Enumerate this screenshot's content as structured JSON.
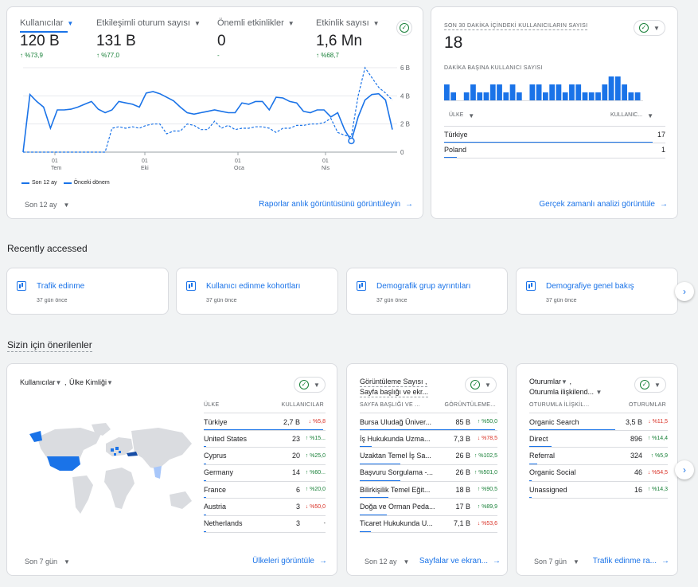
{
  "overview": {
    "tabs": [
      {
        "label": "Kullanıcılar",
        "value": "120 B",
        "delta": "↑ %73,9"
      },
      {
        "label": "Etkileşimli oturum sayısı",
        "value": "131 B",
        "delta": "↑ %77,0"
      },
      {
        "label": "Önemli etkinlikler",
        "value": "0",
        "delta": "-"
      },
      {
        "label": "Etkinlik sayısı",
        "value": "1,6 Mn",
        "delta": "↑ %68,7"
      }
    ],
    "y_ticks": [
      "6 B",
      "4 B",
      "2 B",
      "0"
    ],
    "x_ticks": [
      {
        "day": "01",
        "month": "Tem"
      },
      {
        "day": "01",
        "month": "Eki"
      },
      {
        "day": "01",
        "month": "Oca"
      },
      {
        "day": "01",
        "month": "Nis"
      }
    ],
    "legend_current": "Son 12 ay",
    "legend_previous": "Önceki dönem",
    "range_label": "Son 12 ay",
    "link": "Raporlar anlık görüntüsünü görüntüleyin"
  },
  "chart_data": {
    "type": "line",
    "ylim": [
      0,
      6000
    ],
    "x_tick_labels": [
      "01 Tem",
      "01 Eki",
      "01 Oca",
      "01 Nis"
    ],
    "series": [
      {
        "name": "Son 12 ay",
        "values": [
          0,
          4100,
          3600,
          3200,
          1700,
          3000,
          3000,
          3050,
          3200,
          3400,
          3600,
          3050,
          2800,
          3000,
          3600,
          3500,
          3400,
          3200,
          4200,
          4300,
          4150,
          3900,
          3650,
          3200,
          2800,
          2700,
          2800,
          2900,
          3000,
          2900,
          2800,
          2800,
          3500,
          3400,
          3600,
          3600,
          3000,
          3900,
          3850,
          3600,
          3500,
          2900,
          2800,
          3000,
          3000,
          2500,
          2800,
          1600,
          800,
          2500,
          3700,
          4100,
          4150,
          3700,
          1600
        ]
      },
      {
        "name": "Önceki dönem",
        "values": [
          0,
          0,
          0,
          0,
          0,
          0,
          0,
          0,
          0,
          0,
          0,
          0,
          0,
          1700,
          1800,
          1700,
          1800,
          1700,
          1900,
          2000,
          2000,
          1300,
          1500,
          1500,
          2000,
          1900,
          1600,
          1600,
          2200,
          1700,
          1900,
          1600,
          1700,
          1700,
          1800,
          1800,
          1700,
          1400,
          1700,
          1700,
          1900,
          1900,
          2000,
          2000,
          2100,
          2400,
          1400,
          1200,
          1100,
          4000,
          6000,
          5300,
          4600,
          4200,
          3700
        ]
      }
    ]
  },
  "realtime": {
    "title": "SON 30 DAKİKA İÇİNDEKİ KULLANICILARIN SAYISI",
    "value": "18",
    "subtitle": "DAKİKA BAŞINA KULLANICI SAYISI",
    "per_minute": [
      2,
      1,
      0,
      1,
      2,
      1,
      1,
      2,
      2,
      1,
      2,
      1,
      0,
      2,
      2,
      1,
      2,
      2,
      1,
      2,
      2,
      1,
      1,
      1,
      2,
      3,
      3,
      2,
      1,
      1
    ],
    "col_country": "ÜLKE",
    "col_users": "KULLANIC...",
    "rows": [
      {
        "country": "Türkiye",
        "users": "17",
        "share": 1.0
      },
      {
        "country": "Poland",
        "users": "1",
        "share": 0.06
      }
    ],
    "link": "Gerçek zamanlı analizi görüntüle"
  },
  "recent": {
    "heading": "Recently accessed",
    "items": [
      {
        "title": "Trafik edinme",
        "sub": "37 gün önce"
      },
      {
        "title": "Kullanıcı edinme kohortları",
        "sub": "37 gün önce"
      },
      {
        "title": "Demografik grup ayrıntıları",
        "sub": "37 gün önce"
      },
      {
        "title": "Demografiye genel bakış",
        "sub": "37 gün önce"
      }
    ]
  },
  "suggested": {
    "heading": "Sizin için önerilenler",
    "map_card": {
      "metric": "Kullanıcılar",
      "dimension": "Ülke Kimliği",
      "col_country": "ÜLKE",
      "col_users": "KULLANICILAR",
      "rows": [
        {
          "name": "Türkiye",
          "value": "2,7 B",
          "delta": "↓ %5,8",
          "dir": "down",
          "share": 1.0
        },
        {
          "name": "United States",
          "value": "23",
          "delta": "↑ %15...",
          "dir": "up",
          "share": 0.01
        },
        {
          "name": "Cyprus",
          "value": "20",
          "delta": "↑ %25,0",
          "dir": "up",
          "share": 0.01
        },
        {
          "name": "Germany",
          "value": "14",
          "delta": "↑ %60...",
          "dir": "up",
          "share": 0.01
        },
        {
          "name": "France",
          "value": "6",
          "delta": "↑ %20,0",
          "dir": "up",
          "share": 0.01
        },
        {
          "name": "Austria",
          "value": "3",
          "delta": "↓ %50,0",
          "dir": "down",
          "share": 0.01
        },
        {
          "name": "Netherlands",
          "value": "3",
          "delta": "-",
          "dir": "none",
          "share": 0.01
        }
      ],
      "range_label": "Son 7 gün",
      "link": "Ülkeleri görüntüle"
    },
    "pages_card": {
      "metric": "Görüntüleme Sayısı ,",
      "dimension": "Sayfa başlığı ve ekr...",
      "col_name": "SAYFA BAŞLIĞI VE ...",
      "col_value": "GÖRÜNTÜLEME...",
      "rows": [
        {
          "name": "Bursa Uludağ Üniver...",
          "value": "85 B",
          "delta": "↑ %50,0",
          "dir": "up",
          "share": 1.0
        },
        {
          "name": "İş Hukukunda Uzma...",
          "value": "7,3 B",
          "delta": "↓ %78,5",
          "dir": "down",
          "share": 0.09
        },
        {
          "name": "Uzaktan Temel İş Sa...",
          "value": "26 B",
          "delta": "↑ %102,5",
          "dir": "up",
          "share": 0.3
        },
        {
          "name": "Başvuru Sorgulama -...",
          "value": "26 B",
          "delta": "↑ %501,0",
          "dir": "up",
          "share": 0.3
        },
        {
          "name": "Bilirkişilik Temel Eğit...",
          "value": "18 B",
          "delta": "↑ %90,5",
          "dir": "up",
          "share": 0.21
        },
        {
          "name": "Doğa ve Orman Peda...",
          "value": "17 B",
          "delta": "↑ %89,9",
          "dir": "up",
          "share": 0.2
        },
        {
          "name": "Ticaret Hukukunda U...",
          "value": "7,1 B",
          "delta": "↓ %53,6",
          "dir": "down",
          "share": 0.08
        }
      ],
      "range_label": "Son 12 ay",
      "link": "Sayfalar ve ekran..."
    },
    "sessions_card": {
      "metric": "Oturumlar",
      "dimension": "Oturumla ilişkilend...",
      "col_name": "OTURUMLA İLİŞKİL...",
      "col_value": "OTURUMLAR",
      "rows": [
        {
          "name": "Organic Search",
          "value": "3,5 B",
          "delta": "↓ %11,5",
          "dir": "down",
          "share": 1.0
        },
        {
          "name": "Direct",
          "value": "896",
          "delta": "↑ %14,4",
          "dir": "up",
          "share": 0.26
        },
        {
          "name": "Referral",
          "value": "324",
          "delta": "↑ %5,9",
          "dir": "up",
          "share": 0.09
        },
        {
          "name": "Organic Social",
          "value": "46",
          "delta": "↓ %54,5",
          "dir": "down",
          "share": 0.02
        },
        {
          "name": "Unassigned",
          "value": "16",
          "delta": "↑ %14,3",
          "dir": "up",
          "share": 0.01
        }
      ],
      "range_label": "Son 7 gün",
      "link": "Trafik edinme ra..."
    }
  },
  "colors": {
    "accent": "#1a73e8",
    "positive": "#188038",
    "negative": "#d93025"
  },
  "icons": [
    "check-circle-icon",
    "chevron-down-icon",
    "arrow-right-icon",
    "chevron-right-icon",
    "bar-chart-icon"
  ]
}
